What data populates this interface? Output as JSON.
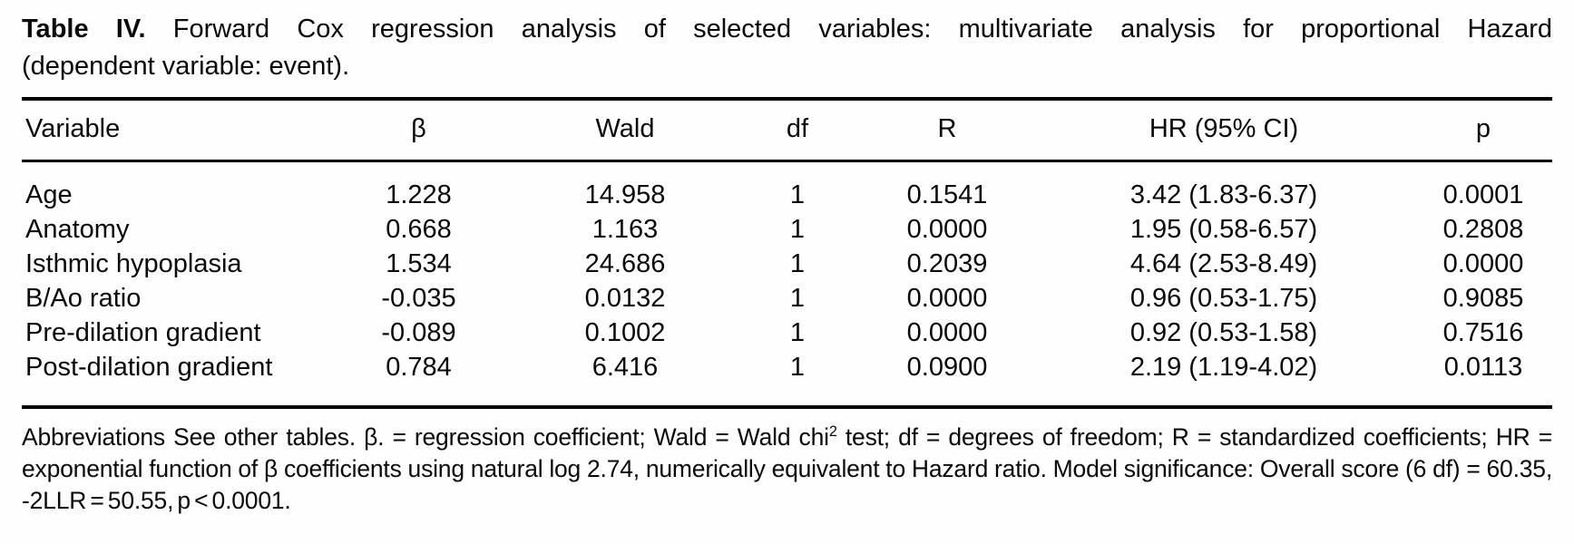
{
  "caption": {
    "label": "Table IV.",
    "line1_rest": " Forward Cox regression analysis of selected variables: multivariate analysis for proportional Hazard",
    "line2": "(dependent variable: event)."
  },
  "columns": [
    "Variable",
    "β",
    "Wald",
    "df",
    "R",
    "HR (95% CI)",
    "p"
  ],
  "rows": [
    {
      "variable": "Age",
      "beta": "1.228",
      "wald": "14.958",
      "df": "1",
      "r": "0.1541",
      "hr": "3.42 (1.83-6.37)",
      "p": "0.0001"
    },
    {
      "variable": "Anatomy",
      "beta": "0.668",
      "wald": "1.163",
      "df": "1",
      "r": "0.0000",
      "hr": "1.95 (0.58-6.57)",
      "p": "0.2808"
    },
    {
      "variable": "Isthmic hypoplasia",
      "beta": "1.534",
      "wald": "24.686",
      "df": "1",
      "r": "0.2039",
      "hr": "4.64 (2.53-8.49)",
      "p": "0.0000"
    },
    {
      "variable": "B/Ao ratio",
      "beta": "-0.035",
      "wald": "0.0132",
      "df": "1",
      "r": "0.0000",
      "hr": "0.96 (0.53-1.75)",
      "p": "0.9085"
    },
    {
      "variable": "Pre-dilation gradient",
      "beta": "-0.089",
      "wald": "0.1002",
      "df": "1",
      "r": "0.0000",
      "hr": "0.92 (0.53-1.58)",
      "p": "0.7516"
    },
    {
      "variable": "Post-dilation gradient",
      "beta": "0.784",
      "wald": "6.416",
      "df": "1",
      "r": "0.0900",
      "hr": "2.19 (1.19-4.02)",
      "p": "0.0113"
    }
  ],
  "footnote": {
    "part1": "Abbreviations See other tables. β. = regression coefficient; Wald = Wald chi",
    "sup": "2",
    "part2": " test; df = degrees of freedom; R = standardized coefficients; HR = exponential function of β coefficients using natural log 2.74, numerically equivalent to Hazard ratio. Model significance: Overall score (6 df) = 60.35, -2LLR = 50.55, p < 0.0001."
  }
}
